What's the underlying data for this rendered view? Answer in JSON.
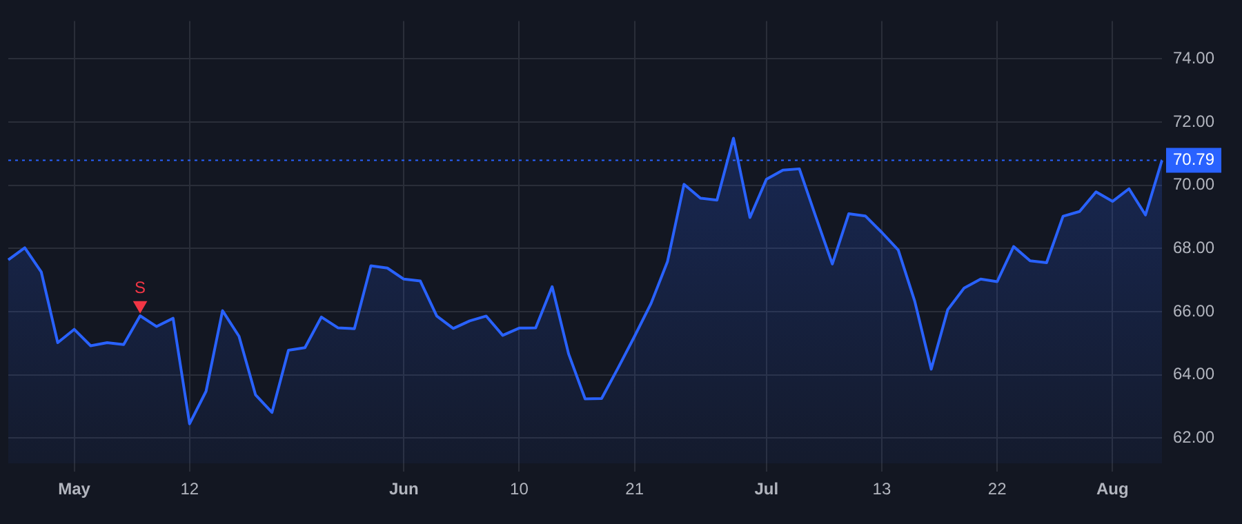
{
  "chart_data": {
    "type": "area",
    "categories": [
      null,
      null,
      null,
      null,
      "May",
      null,
      null,
      null,
      null,
      null,
      null,
      "12",
      null,
      null,
      null,
      null,
      null,
      null,
      null,
      null,
      null,
      null,
      null,
      null,
      "Jun",
      null,
      null,
      null,
      null,
      null,
      null,
      "10",
      null,
      null,
      null,
      null,
      null,
      null,
      "21",
      null,
      null,
      null,
      null,
      null,
      null,
      null,
      "Jul",
      null,
      null,
      null,
      null,
      null,
      null,
      "13",
      null,
      null,
      null,
      null,
      null,
      null,
      "22",
      null,
      null,
      null,
      null,
      null,
      null,
      "Aug",
      null,
      null,
      null
    ],
    "series": [
      {
        "color": "#2962ff",
        "values": [
          67.64,
          68.02,
          67.26,
          65.02,
          65.44,
          64.92,
          65.02,
          64.96,
          65.87,
          65.53,
          65.79,
          62.45,
          63.48,
          66.03,
          65.22,
          63.37,
          62.81,
          64.78,
          64.86,
          65.83,
          65.49,
          65.46,
          67.45,
          67.38,
          67.03,
          66.97,
          65.86,
          65.47,
          65.71,
          65.86,
          65.25,
          65.48,
          65.49,
          66.79,
          64.66,
          63.24,
          63.25,
          64.22,
          65.22,
          66.26,
          67.59,
          70.03,
          69.59,
          69.53,
          71.49,
          68.98,
          70.19,
          70.48,
          70.52,
          69.0,
          67.51,
          69.1,
          69.03,
          68.51,
          67.95,
          66.33,
          64.18,
          66.06,
          66.75,
          67.03,
          66.95,
          68.06,
          67.61,
          67.55,
          69.02,
          69.17,
          69.79,
          69.49,
          69.89,
          69.06,
          70.79
        ]
      },
      {
        "type": "scatter",
        "color": "#f23645",
        "marker": "triangle",
        "values": [
          null,
          null,
          null,
          null,
          null,
          null,
          null,
          null,
          66.2,
          null,
          null,
          null,
          null,
          null,
          null,
          null,
          null,
          null,
          null,
          null,
          null,
          null,
          null,
          null,
          null,
          null,
          null,
          null,
          null,
          null,
          null,
          null,
          null,
          null,
          null,
          null,
          null,
          null,
          null,
          null,
          null,
          null,
          null,
          null,
          null,
          null,
          null,
          null,
          null,
          null,
          null,
          null,
          null,
          null,
          null,
          null,
          null,
          null,
          null,
          null,
          null,
          null,
          null,
          null,
          null,
          null,
          null,
          null,
          null,
          null,
          null
        ],
        "value_labels": [
          null,
          null,
          null,
          null,
          null,
          null,
          null,
          null,
          "S",
          null,
          null,
          null,
          null,
          null,
          null,
          null,
          null,
          null,
          null,
          null,
          null,
          null,
          null,
          null,
          null,
          null,
          null,
          null,
          null,
          null,
          null,
          null,
          null,
          null,
          null,
          null,
          null,
          null,
          null,
          null,
          null,
          null,
          null,
          null,
          null,
          null,
          null,
          null,
          null,
          null,
          null,
          null,
          null,
          null,
          null,
          null,
          null,
          null,
          null,
          null,
          null,
          null,
          null,
          null,
          null,
          null,
          null,
          null,
          null,
          null,
          null
        ]
      }
    ],
    "ylim": [
      61.2,
      75.2
    ],
    "yticks": [
      {
        "value": 62,
        "label": "62.00"
      },
      {
        "value": 64,
        "label": "64.00"
      },
      {
        "value": 66,
        "label": "66.00"
      },
      {
        "value": 68,
        "label": "68.00"
      },
      {
        "value": 70,
        "label": "70.00"
      },
      {
        "value": 72,
        "label": "72.00"
      },
      {
        "value": 74,
        "label": "74.00"
      }
    ],
    "ref_lines": [
      {
        "axis": "y",
        "value": 70.79,
        "label": "70.79",
        "color": "#2962ff",
        "line_style": "dotted"
      }
    ],
    "grid": true,
    "legend": false
  }
}
